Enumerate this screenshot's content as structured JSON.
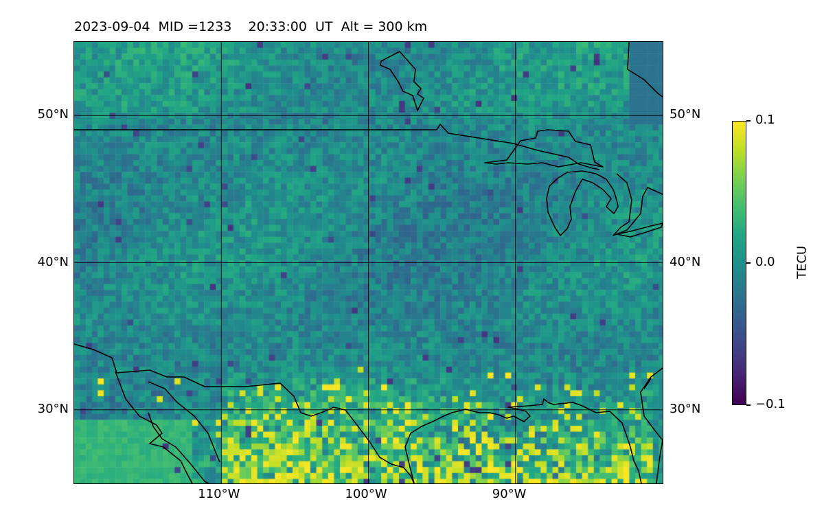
{
  "title": "2023-09-04  MID =1233    20:33:00  UT  Alt = 300 km",
  "map": {
    "extent": {
      "lon_min": -120,
      "lon_max": -80,
      "lat_min": 25,
      "lat_max": 55
    },
    "lat_labels": [
      {
        "lat": 50,
        "text": "50°N"
      },
      {
        "lat": 40,
        "text": "40°N"
      },
      {
        "lat": 30,
        "text": "30°N"
      }
    ],
    "lon_labels": [
      {
        "lon": -110,
        "text": "110°W"
      },
      {
        "lon": -100,
        "text": "100°W"
      },
      {
        "lon": -90,
        "text": "90°W"
      }
    ],
    "colormap": "viridis",
    "field": "TEC perturbation"
  },
  "colorbar": {
    "label": "TECU",
    "min": -0.1,
    "max": 0.1,
    "ticks": [
      {
        "value": 0.1,
        "text": "0.1"
      },
      {
        "value": 0.0,
        "text": "0.0"
      },
      {
        "value": -0.1,
        "text": "−0.1"
      }
    ]
  },
  "colors": {
    "coastline": "#000000",
    "gridline": "#000000"
  }
}
